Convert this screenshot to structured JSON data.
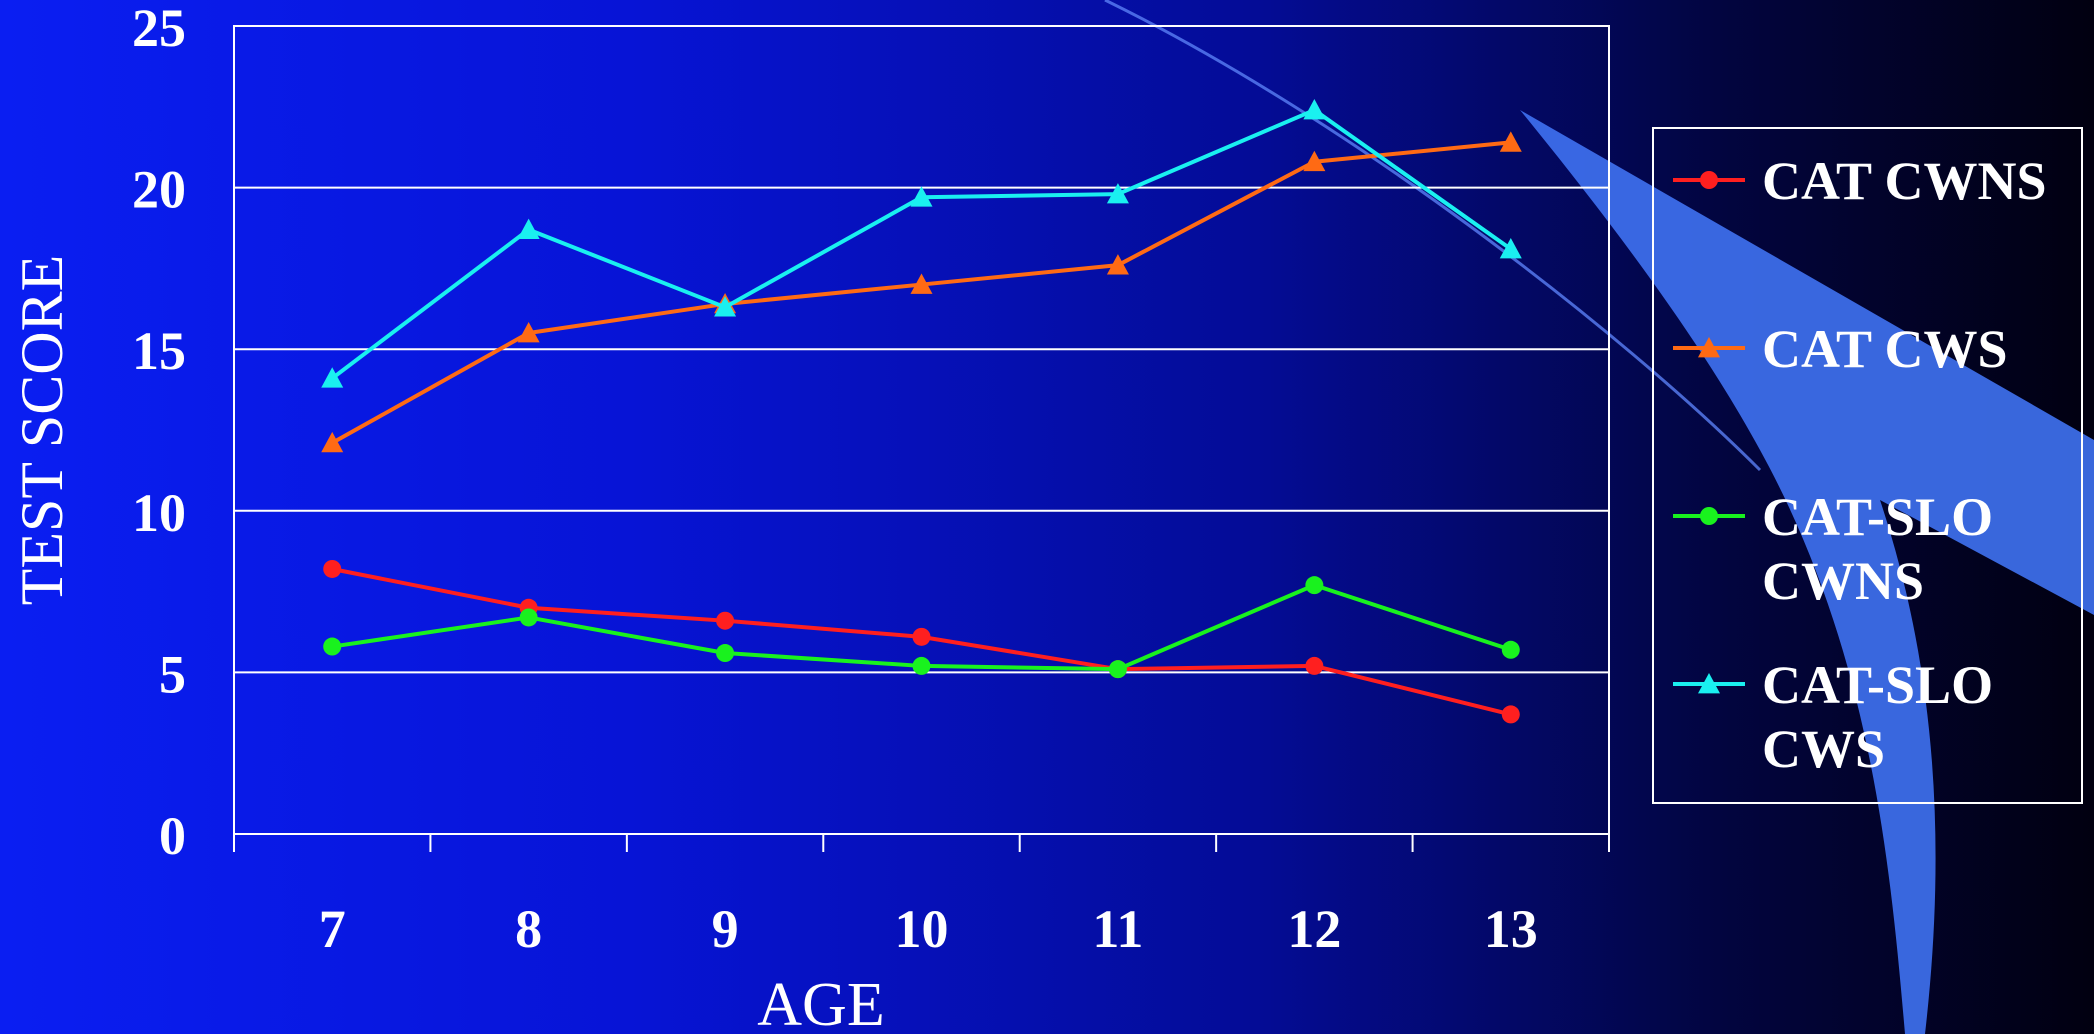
{
  "chart_data": {
    "type": "line",
    "title": "",
    "xlabel": "AGE",
    "ylabel": "TEST SCORE",
    "categories": [
      "7",
      "8",
      "9",
      "10",
      "11",
      "12",
      "13"
    ],
    "ylim": [
      0,
      25
    ],
    "yticks": [
      "0",
      "5",
      "10",
      "15",
      "20",
      "25"
    ],
    "grid": true,
    "legend_position": "right",
    "series": [
      {
        "name": "CAT CWNS",
        "name_lines": [
          "CAT CWNS"
        ],
        "marker": "circle",
        "color": "#ff1f1f",
        "values": [
          8.2,
          7.0,
          6.6,
          6.1,
          5.1,
          5.2,
          3.7
        ]
      },
      {
        "name": "CAT CWS",
        "name_lines": [
          "CAT CWS"
        ],
        "marker": "triangle",
        "color": "#ff6a14",
        "values": [
          12.1,
          15.5,
          16.4,
          17.0,
          17.6,
          20.8,
          21.4
        ]
      },
      {
        "name": "CAT-SLO CWNS",
        "name_lines": [
          "CAT-SLO",
          "CWNS"
        ],
        "marker": "circle",
        "color": "#19f21e",
        "values": [
          5.8,
          6.7,
          5.6,
          5.2,
          5.1,
          7.7,
          5.7
        ]
      },
      {
        "name": "CAT-SLO CWS",
        "name_lines": [
          "CAT-SLO",
          "CWS"
        ],
        "marker": "triangle",
        "color": "#1af0f0",
        "values": [
          14.1,
          18.7,
          16.3,
          19.7,
          19.8,
          22.4,
          18.1
        ]
      }
    ]
  }
}
